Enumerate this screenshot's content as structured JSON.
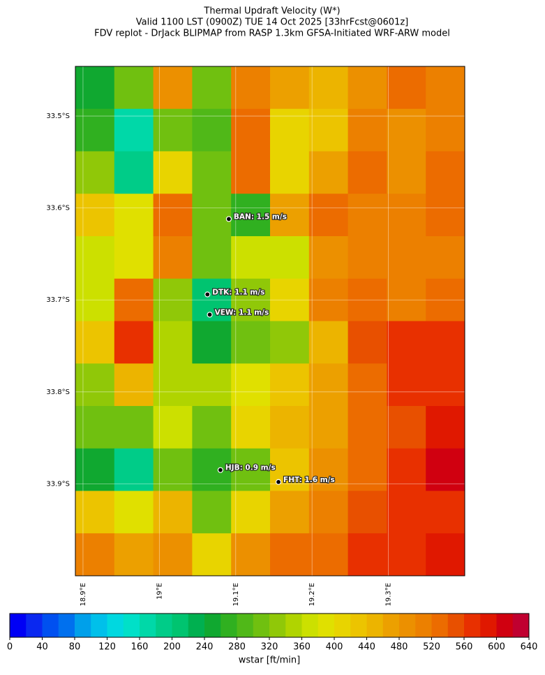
{
  "chart_data": {
    "type": "heatmap",
    "title": [
      "Thermal Updraft Velocity (W*)",
      "Valid 1100 LST (0900Z) TUE 14 Oct 2025 [33hrFcst@0601z]",
      "FDV replot - DrJack BLIPMAP from RASP 1.3km GFSA-Initiated WRF-ARW model"
    ],
    "xlim": [
      18.89,
      19.4
    ],
    "ylim": [
      -34.0,
      -33.446
    ],
    "xticks": [
      {
        "value": 18.9,
        "label": "18.9°E"
      },
      {
        "value": 19.0,
        "label": "19°E"
      },
      {
        "value": 19.1,
        "label": "19.1°E"
      },
      {
        "value": 19.2,
        "label": "19.2°E"
      },
      {
        "value": 19.3,
        "label": "19.3°E"
      }
    ],
    "yticks": [
      {
        "value": -33.5,
        "label": "33.5°S"
      },
      {
        "value": -33.6,
        "label": "33.6°S"
      },
      {
        "value": -33.7,
        "label": "33.7°S"
      },
      {
        "value": -33.8,
        "label": "33.8°S"
      },
      {
        "value": -33.9,
        "label": "33.9°S"
      }
    ],
    "grid": [
      [
        250,
        300,
        480,
        300,
        500,
        460,
        440,
        480,
        520,
        500
      ],
      [
        260,
        160,
        300,
        280,
        520,
        400,
        420,
        500,
        480,
        500
      ],
      [
        330,
        180,
        400,
        300,
        520,
        400,
        460,
        520,
        480,
        520
      ],
      [
        420,
        380,
        520,
        300,
        260,
        460,
        520,
        500,
        500,
        520
      ],
      [
        360,
        380,
        500,
        300,
        360,
        360,
        480,
        500,
        500,
        500
      ],
      [
        360,
        520,
        320,
        200,
        330,
        400,
        500,
        520,
        500,
        520
      ],
      [
        420,
        560,
        340,
        250,
        300,
        330,
        440,
        540,
        560,
        560
      ],
      [
        330,
        440,
        350,
        350,
        380,
        420,
        460,
        520,
        560,
        560
      ],
      [
        300,
        300,
        360,
        300,
        400,
        440,
        460,
        520,
        540,
        580
      ],
      [
        250,
        180,
        300,
        260,
        300,
        420,
        480,
        520,
        560,
        600
      ],
      [
        420,
        380,
        450,
        300,
        400,
        460,
        500,
        540,
        560,
        560
      ],
      [
        500,
        460,
        480,
        400,
        480,
        520,
        520,
        560,
        560,
        580
      ]
    ],
    "stations": [
      {
        "label": "BAN: 1.5 m/s",
        "lon": 19.091,
        "lat": -33.612
      },
      {
        "label": "DTK: 1.1 m/s",
        "lon": 19.063,
        "lat": -33.694
      },
      {
        "label": "VEW: 1.1 m/s",
        "lon": 19.066,
        "lat": -33.716
      },
      {
        "label": "HJB: 0.9 m/s",
        "lon": 19.08,
        "lat": -33.885
      },
      {
        "label": "FHT: 1.6 m/s",
        "lon": 19.156,
        "lat": -33.898
      }
    ],
    "colorbar": {
      "label": "wstar [ft/min]",
      "clim": [
        0,
        640
      ],
      "ticks": [
        0,
        40,
        80,
        120,
        160,
        200,
        240,
        280,
        320,
        360,
        400,
        440,
        480,
        520,
        560,
        600,
        640
      ],
      "colors": [
        "#0000f5",
        "#0a28f0",
        "#0050f0",
        "#0070ee",
        "#00a0ea",
        "#00c0ea",
        "#00d8e0",
        "#00e0c8",
        "#00d8a8",
        "#00cc88",
        "#00c470",
        "#00b050",
        "#10a830",
        "#30b020",
        "#50b818",
        "#70c010",
        "#90c808",
        "#b0d400",
        "#cce000",
        "#e0e000",
        "#e8d400",
        "#ecc400",
        "#ecb400",
        "#eca000",
        "#ec9000",
        "#ec8000",
        "#ec6c00",
        "#e85000",
        "#e83000",
        "#e01800",
        "#d00010",
        "#c00030"
      ]
    }
  }
}
